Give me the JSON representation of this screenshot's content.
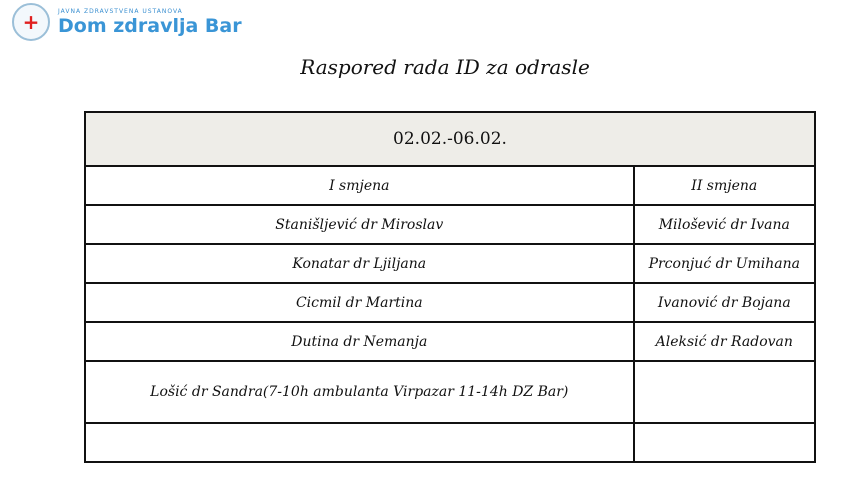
{
  "logo": {
    "subtitle": "JAVNA ZDRAVSTVENA USTANOVA",
    "name": "Dom zdravlja Bar"
  },
  "title": "Raspored rada ID za odrasle",
  "table": {
    "period": "02.02.-06.02.",
    "columns": [
      "I smjena",
      "II smjena"
    ],
    "rows": [
      [
        "Stanišljević dr Miroslav",
        "Milošević dr Ivana"
      ],
      [
        "Konatar dr Ljiljana",
        "Prconjuć dr Umihana"
      ],
      [
        "Cicmil dr Martina",
        "Ivanović dr Bojana"
      ],
      [
        "Dutina dr Nemanja",
        "Aleksić dr Radovan"
      ],
      [
        "Lošić dr Sandra(7-10h ambulanta Virpazar 11-14h DZ Bar)",
        ""
      ],
      [
        "",
        ""
      ]
    ]
  }
}
